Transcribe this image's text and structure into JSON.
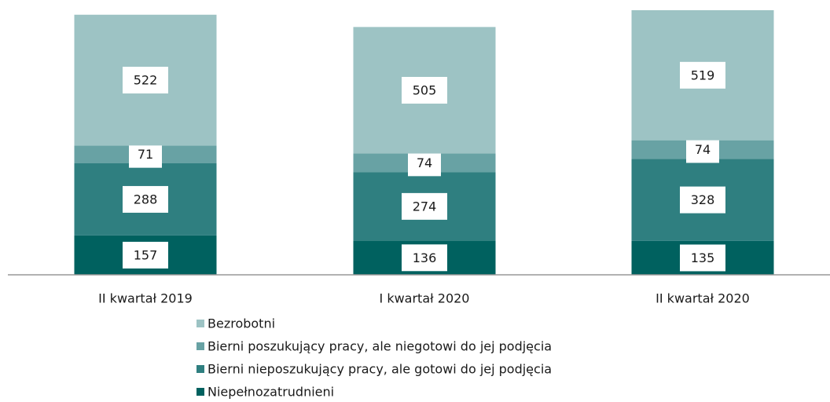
{
  "chart_data": {
    "type": "stacked_bar",
    "categories": [
      "II kwartał 2019",
      "I kwartał 2020",
      "II kwartał 2020"
    ],
    "series": [
      {
        "name": "Bezrobotni",
        "color": "#9dc3c4",
        "values": [
          522,
          505,
          519
        ]
      },
      {
        "name": "Bierni poszukujący pracy, ale niegotowi do jej podjęcia",
        "color": "#68a2a4",
        "values": [
          71,
          74,
          74
        ]
      },
      {
        "name": "Bierni nieposzukujący pracy, ale gotowi do jej podjęcia",
        "color": "#2f7f80",
        "values": [
          288,
          274,
          328
        ]
      },
      {
        "name": "Niepełnozatrudnieni",
        "color": "#00615f",
        "values": [
          157,
          136,
          135
        ]
      }
    ],
    "legend": "bottom"
  }
}
